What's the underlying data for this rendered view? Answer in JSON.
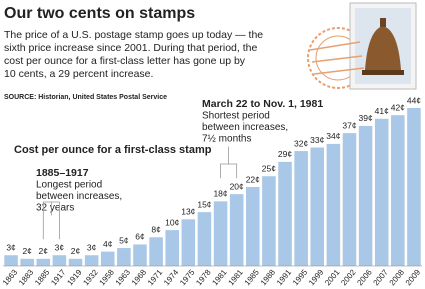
{
  "header": {
    "title": "Our two cents on stamps",
    "intro": [
      "The price of a U.S. postage stamp goes up today — the",
      "sixth price increase since 2001. During that period, the",
      "cost per ounce for a first-class letter has gone up by",
      "10 cents, a 29 percent increase."
    ],
    "source": "SOURCE: Historian, United States Postal Service"
  },
  "chart_data": {
    "type": "bar",
    "title": "Cost per ounce for a first-class stamp",
    "categories": [
      "1863",
      "1883",
      "1885",
      "1917",
      "1919",
      "1932",
      "1958",
      "1963",
      "1968",
      "1971",
      "1974",
      "1975",
      "1978",
      "1981",
      "1981",
      "1985",
      "1988",
      "1991",
      "1995",
      "1999",
      "2001",
      "2002",
      "2006",
      "2007",
      "2008",
      "2009"
    ],
    "values": [
      3,
      2,
      2,
      3,
      2,
      3,
      4,
      5,
      6,
      8,
      10,
      13,
      15,
      18,
      20,
      22,
      25,
      29,
      32,
      33,
      34,
      37,
      39,
      41,
      42,
      44
    ],
    "value_labels": [
      "3¢",
      "2¢",
      "2¢",
      "3¢",
      "2¢",
      "3¢",
      "4¢",
      "5¢",
      "6¢",
      "8¢",
      "10¢",
      "13¢",
      "15¢",
      "18¢",
      "20¢",
      "22¢",
      "25¢",
      "29¢",
      "32¢",
      "33¢",
      "34¢",
      "37¢",
      "39¢",
      "41¢",
      "42¢",
      "44¢"
    ],
    "color": "#a9c7e6",
    "ylim": [
      0,
      44
    ],
    "annotations": [
      {
        "heading": "1885–1917",
        "lines": [
          "Longest period",
          "between increases,",
          "32 years"
        ]
      },
      {
        "heading": "March 22 to Nov. 1, 1981",
        "lines": [
          "Shortest period",
          "between increases,",
          "7½ months"
        ]
      }
    ]
  }
}
